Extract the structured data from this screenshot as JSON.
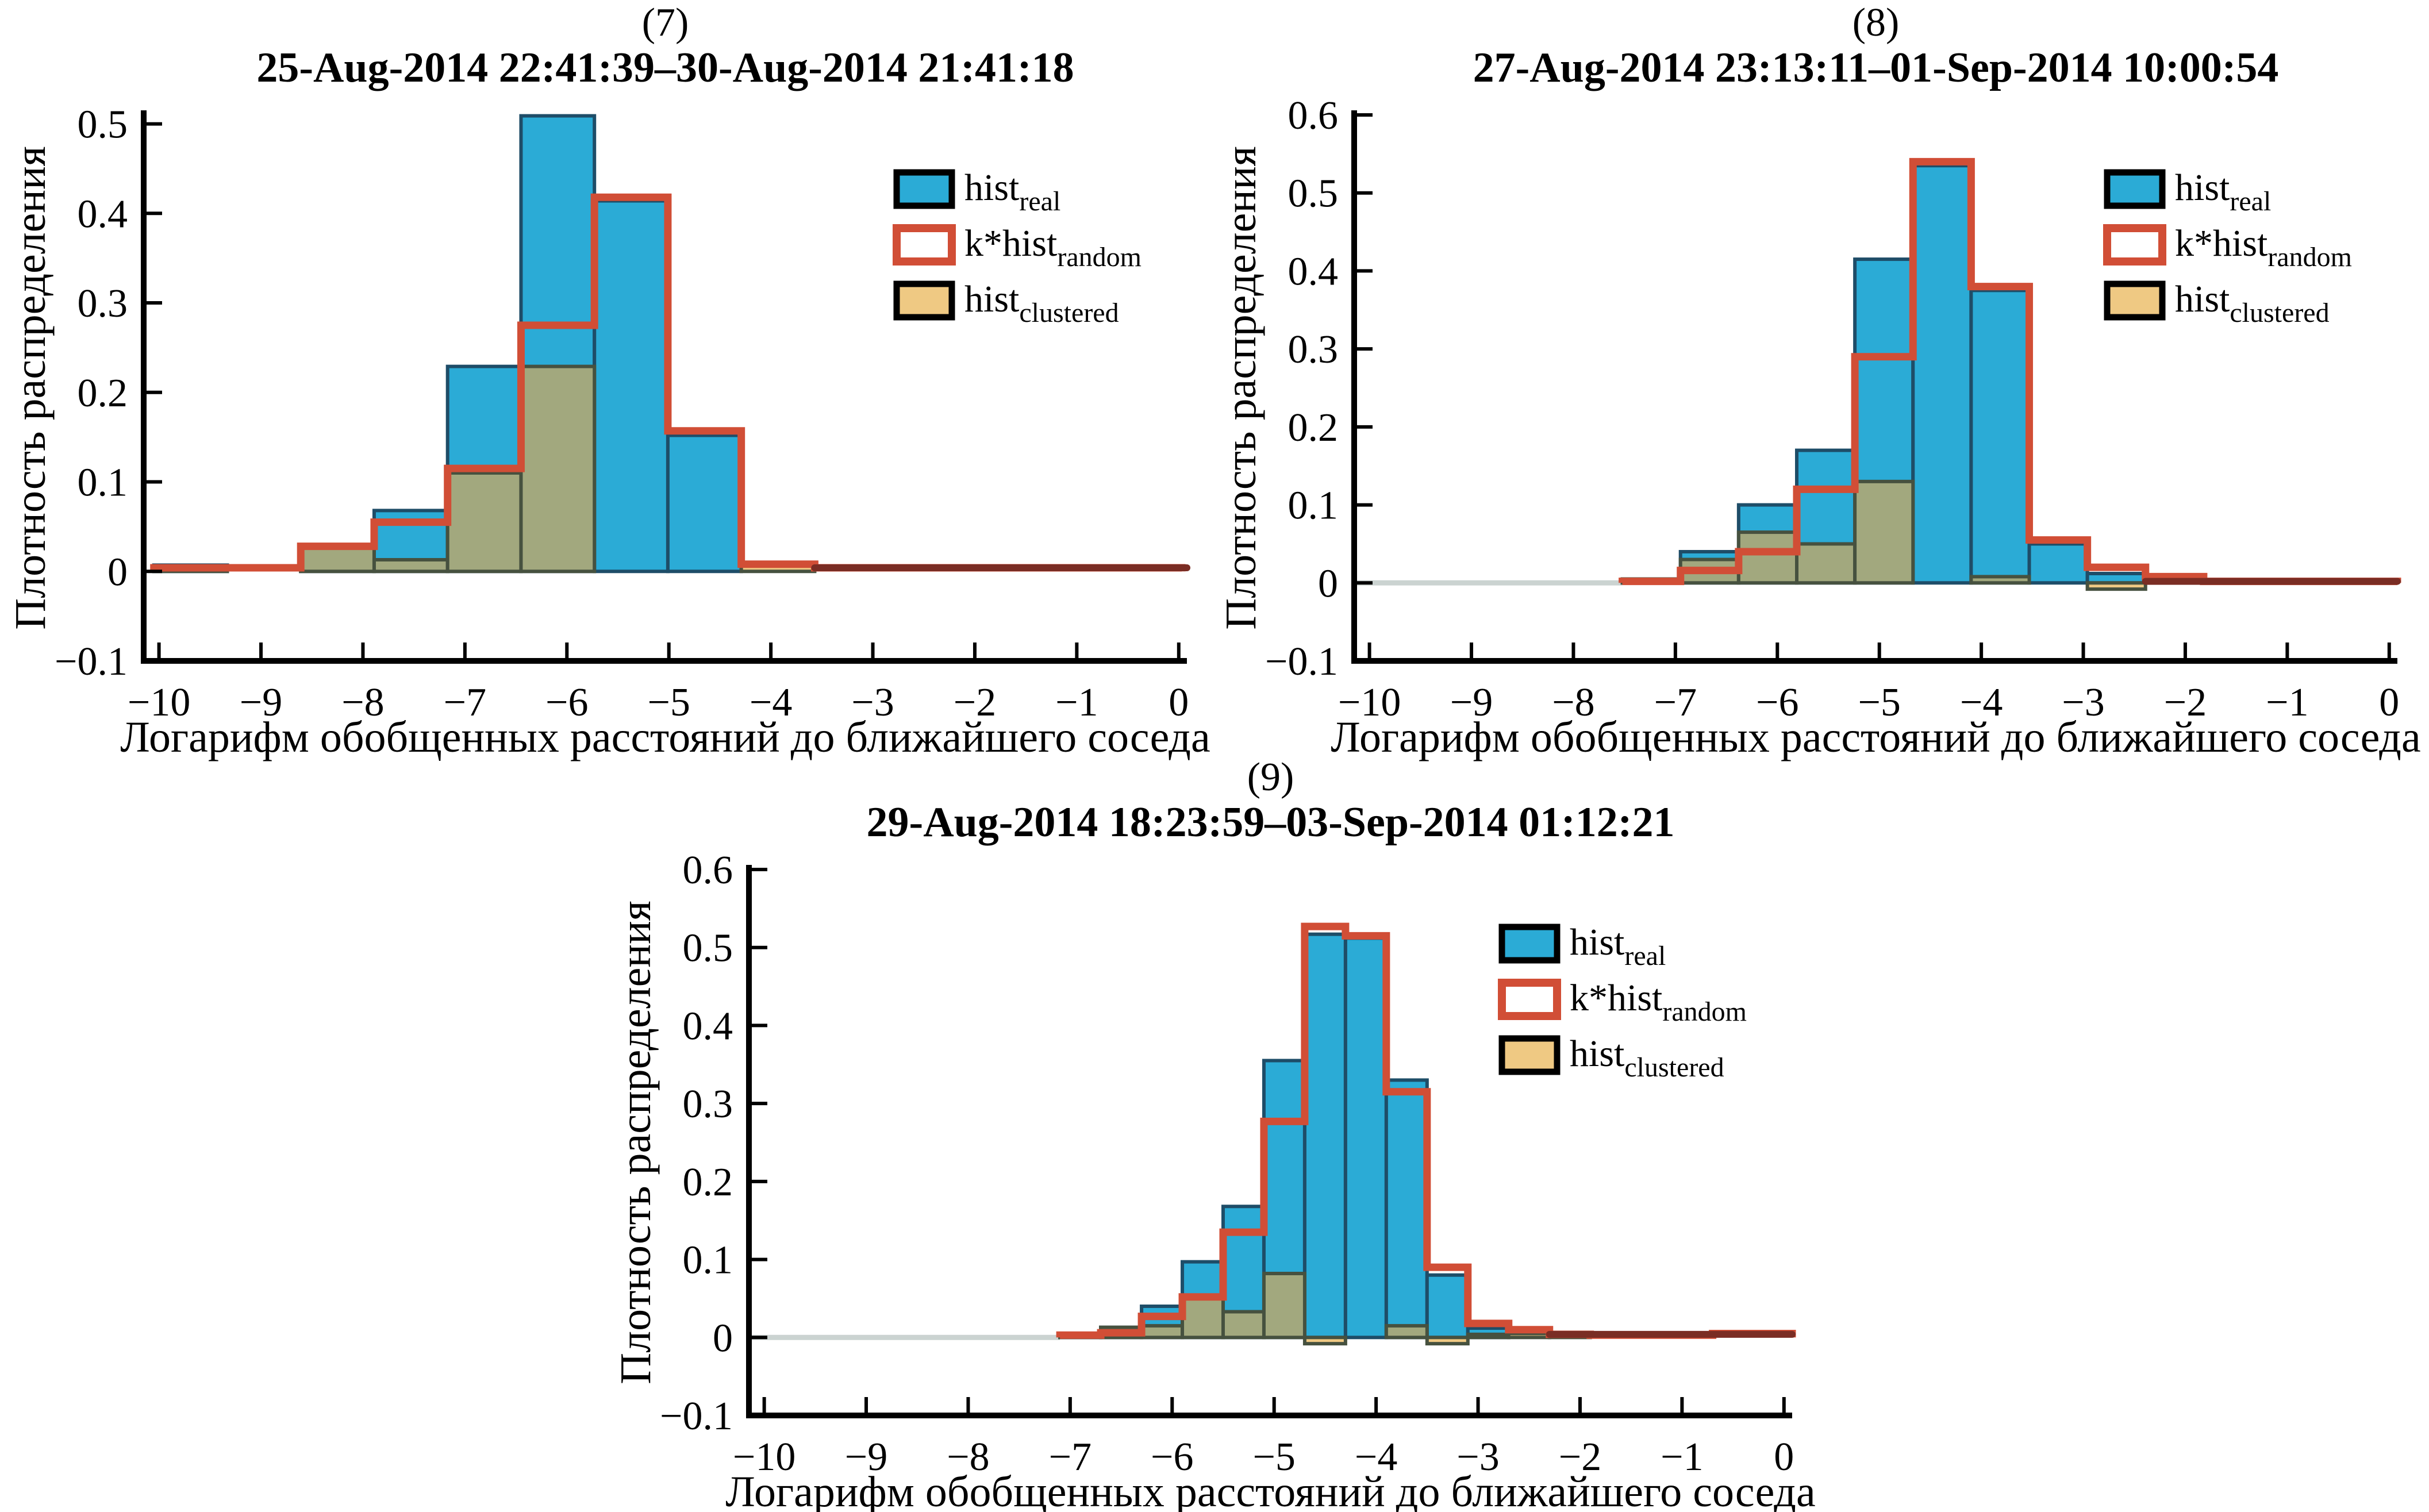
{
  "figure": {
    "description_labels": {
      "ylabel": "Плотность распределения",
      "xlabel": "Логарифм обобщенных расстояний до ближайшего соседа"
    }
  },
  "colors": {
    "real_fill": "#2BABD6",
    "real_edge": "#1E4D68",
    "random_stroke": "#D14E36",
    "clustered_fill": "#EFC983",
    "clustered_edge": "#46513F",
    "clustered_over_real_fill": "#A2A87E",
    "baseline_gray": "#CBD3D1",
    "dark_tail": "#7A2D24",
    "spine": "#000000",
    "text": "#000000"
  },
  "legend": {
    "items": [
      {
        "label": "hist",
        "sub": "real",
        "series": "real"
      },
      {
        "label": "k*hist",
        "sub": "random",
        "series": "random"
      },
      {
        "label": "hist",
        "sub": "clustered",
        "series": "clustered"
      }
    ]
  },
  "chart_data": [
    {
      "type": "bar",
      "subtype": "overlaid-histograms",
      "panel_label": "(7)",
      "title": "25-Aug-2014 22:41:39–30-Aug-2014 21:41:18",
      "xlabel": "Логарифм обобщенных расстояний до ближайшего соседа",
      "ylabel": "Плотность распределения",
      "xlim": [
        -10.15,
        0.08
      ],
      "ylim": [
        -0.1,
        0.51
      ],
      "xticks": [
        -10,
        -9,
        -8,
        -7,
        -6,
        -5,
        -4,
        -3,
        -2,
        -1,
        0
      ],
      "yticks": [
        -0.1,
        0,
        0.1,
        0.2,
        0.3,
        0.4,
        0.5
      ],
      "grid": false,
      "legend_position": "upper right",
      "bin_start": -10.05,
      "bin_width": 0.72,
      "baseline_gray_to": null,
      "dark_tail_from": -3.57,
      "dark_tail_value": 0.004,
      "series": {
        "real": [
          0.007,
          0,
          0.03,
          0.068,
          0.229,
          0.509,
          0.414,
          0.152,
          0,
          0,
          0,
          0,
          0,
          0
        ],
        "random": [
          0.004,
          0.004,
          0.028,
          0.055,
          0.115,
          0.275,
          0.418,
          0.157,
          0.008,
          0.004,
          0.004,
          0.004,
          0.004,
          0.004
        ],
        "clustered": [
          0.006,
          0,
          0.028,
          0.013,
          0.11,
          0.229,
          0,
          0,
          0.006,
          0,
          0,
          0,
          0,
          0
        ]
      }
    },
    {
      "type": "bar",
      "subtype": "overlaid-histograms",
      "panel_label": "(8)",
      "title": "27-Aug-2014 23:13:11–01-Sep-2014 10:00:54",
      "xlabel": "Логарифм обобщенных расстояний до ближайшего соседа",
      "ylabel": "Плотность распределения",
      "xlim": [
        -10.15,
        0.08
      ],
      "ylim": [
        -0.1,
        0.6
      ],
      "xticks": [
        -10,
        -9,
        -8,
        -7,
        -6,
        -5,
        -4,
        -3,
        -2,
        -1,
        0
      ],
      "yticks": [
        -0.1,
        0,
        0.1,
        0.2,
        0.3,
        0.4,
        0.5,
        0.6
      ],
      "grid": false,
      "legend_position": "upper right",
      "bin_start": -7.52,
      "bin_width": 0.57,
      "baseline_gray_to": -7.52,
      "dark_tail_from": -2.39,
      "dark_tail_value": 0.002,
      "series": {
        "real": [
          0.005,
          0.04,
          0.1,
          0.17,
          0.415,
          0.535,
          0.375,
          0.05,
          0.012,
          0.008,
          0,
          0,
          0,
          0
        ],
        "random": [
          0.002,
          0.016,
          0.04,
          0.12,
          0.29,
          0.54,
          0.38,
          0.055,
          0.02,
          0.008,
          0.002,
          0.002,
          0.002,
          0.002
        ],
        "clustered": [
          0.005,
          0.03,
          0.065,
          0.05,
          0.13,
          0,
          0.008,
          0,
          -0.008,
          0.008,
          0,
          0,
          0,
          0
        ]
      }
    },
    {
      "type": "bar",
      "subtype": "overlaid-histograms",
      "panel_label": "(9)",
      "title": "29-Aug-2014 18:23:59–03-Sep-2014 01:12:21",
      "xlabel": "Логарифм обобщенных расстояний до ближайшего соседа",
      "ylabel": "Плотность распределения",
      "xlim": [
        -10.15,
        0.08
      ],
      "ylim": [
        -0.1,
        0.6
      ],
      "xticks": [
        -10,
        -9,
        -8,
        -7,
        -6,
        -5,
        -4,
        -3,
        -2,
        -1,
        0
      ],
      "yticks": [
        -0.1,
        0,
        0.1,
        0.2,
        0.3,
        0.4,
        0.5,
        0.6
      ],
      "grid": false,
      "legend_position": "upper right",
      "bin_start": -7.1,
      "bin_width": 0.4,
      "baseline_gray_to": -7.1,
      "dark_tail_from": -2.3,
      "dark_tail_value": 0.004,
      "series": {
        "real": [
          0.004,
          0.013,
          0.04,
          0.097,
          0.168,
          0.355,
          0.517,
          0.512,
          0.33,
          0.08,
          0.012,
          0,
          0,
          0,
          0,
          0,
          0,
          0
        ],
        "random": [
          0.003,
          0.006,
          0.027,
          0.052,
          0.135,
          0.277,
          0.527,
          0.515,
          0.315,
          0.09,
          0.018,
          0.01,
          0.004,
          0.003,
          0.003,
          0.003,
          0.005,
          0.005
        ],
        "clustered": [
          0.005,
          0.013,
          0.015,
          0.05,
          0.033,
          0.082,
          -0.008,
          0,
          0.015,
          -0.008,
          0.004,
          0.005,
          0.003,
          0,
          0,
          0,
          0,
          0
        ]
      }
    }
  ]
}
